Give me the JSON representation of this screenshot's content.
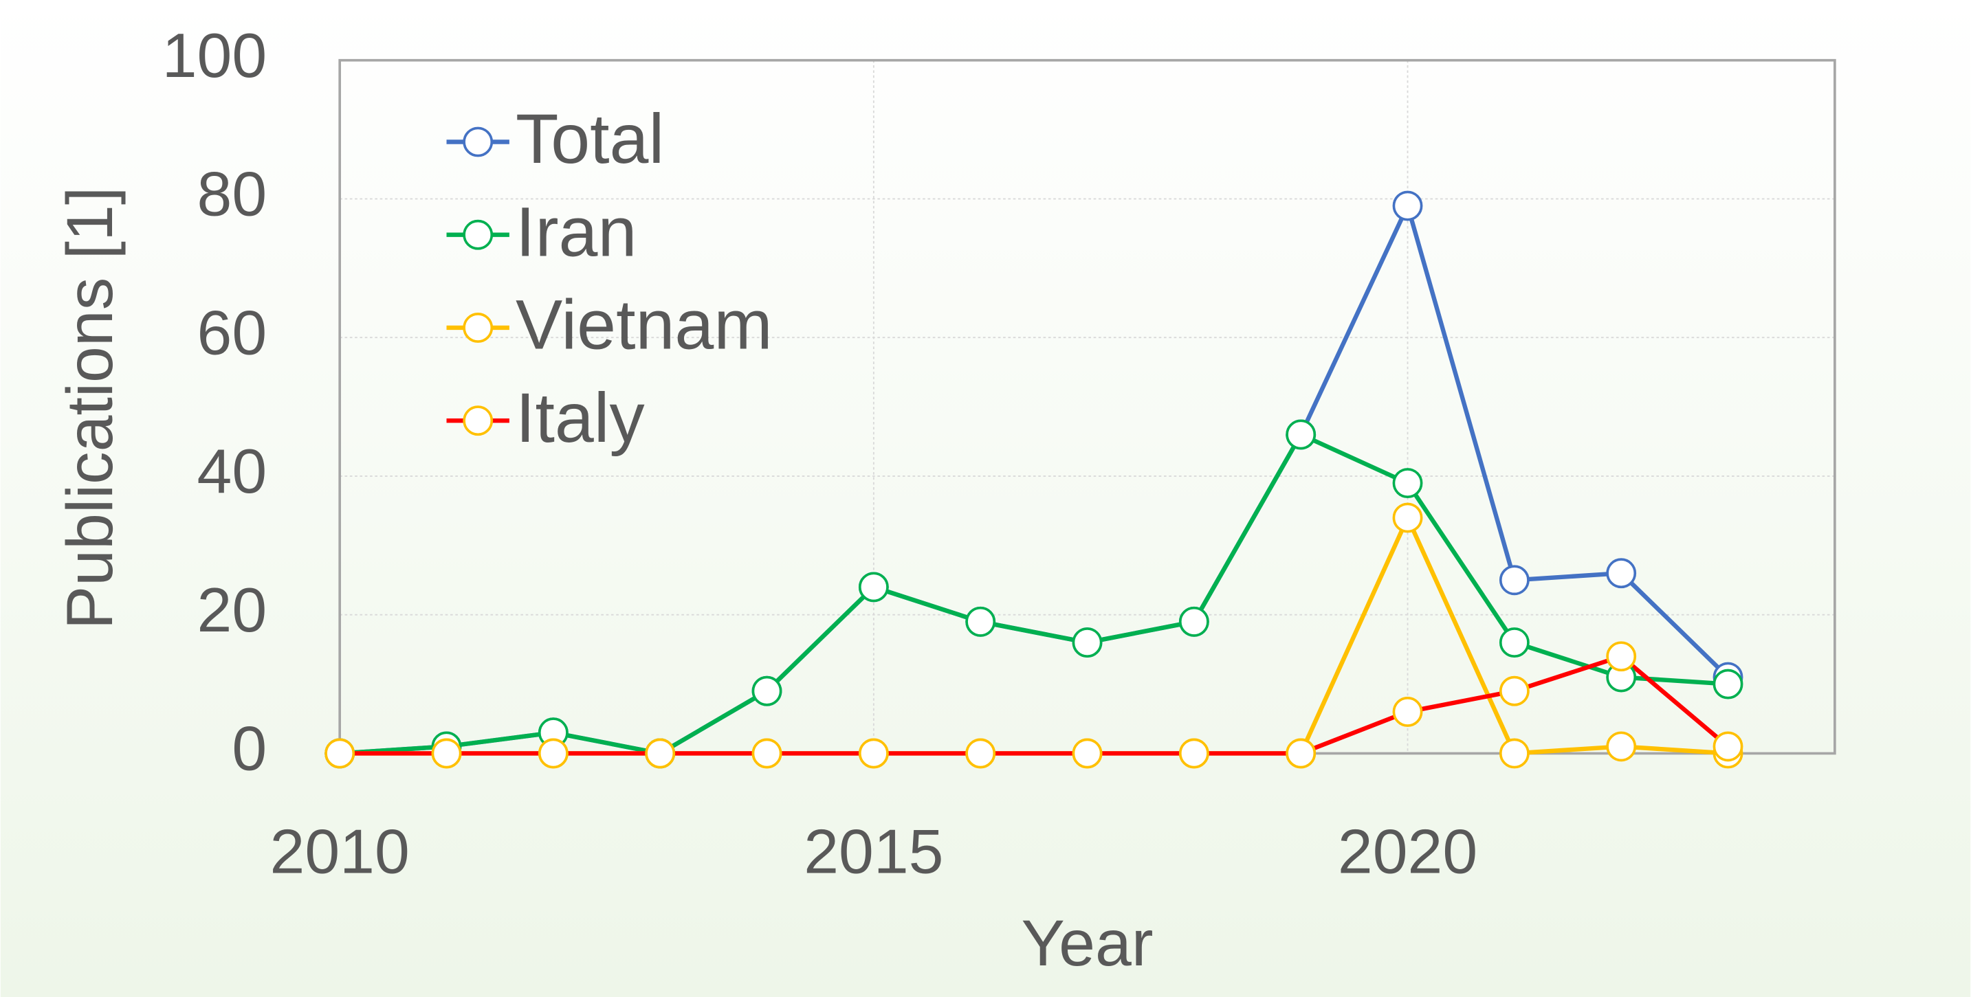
{
  "chart_data": {
    "type": "line",
    "x_label": "Year",
    "y_label": "Publications [1]",
    "x": [
      2010,
      2011,
      2012,
      2013,
      2014,
      2015,
      2016,
      2017,
      2018,
      2019,
      2020,
      2021,
      2022,
      2023
    ],
    "series": [
      {
        "name": "Total",
        "color": "#4472c4",
        "marker_color": "#4472c4",
        "values": [
          0,
          1,
          3,
          0,
          9,
          24,
          19,
          16,
          19,
          46,
          79,
          25,
          26,
          11
        ]
      },
      {
        "name": "Iran",
        "color": "#00b050",
        "marker_color": "#00b050",
        "values": [
          0,
          1,
          3,
          0,
          9,
          24,
          19,
          16,
          19,
          46,
          39,
          16,
          11,
          10
        ]
      },
      {
        "name": "Vietnam",
        "color": "#ffc000",
        "marker_color": "#ffc000",
        "values": [
          0,
          0,
          0,
          0,
          0,
          0,
          0,
          0,
          0,
          0,
          34,
          0,
          1,
          0
        ]
      },
      {
        "name": "Italy",
        "color": "#ff0000",
        "marker_color": "#ffc000",
        "values": [
          0,
          0,
          0,
          0,
          0,
          0,
          0,
          0,
          0,
          0,
          6,
          9,
          14,
          1
        ]
      }
    ],
    "xlim": [
      2010,
      2024
    ],
    "xticks": [
      2010,
      2015,
      2020
    ],
    "ylim": [
      0,
      100
    ],
    "yticks": [
      0,
      20,
      40,
      60,
      80,
      100
    ],
    "grid": true,
    "legend": "upper left"
  }
}
